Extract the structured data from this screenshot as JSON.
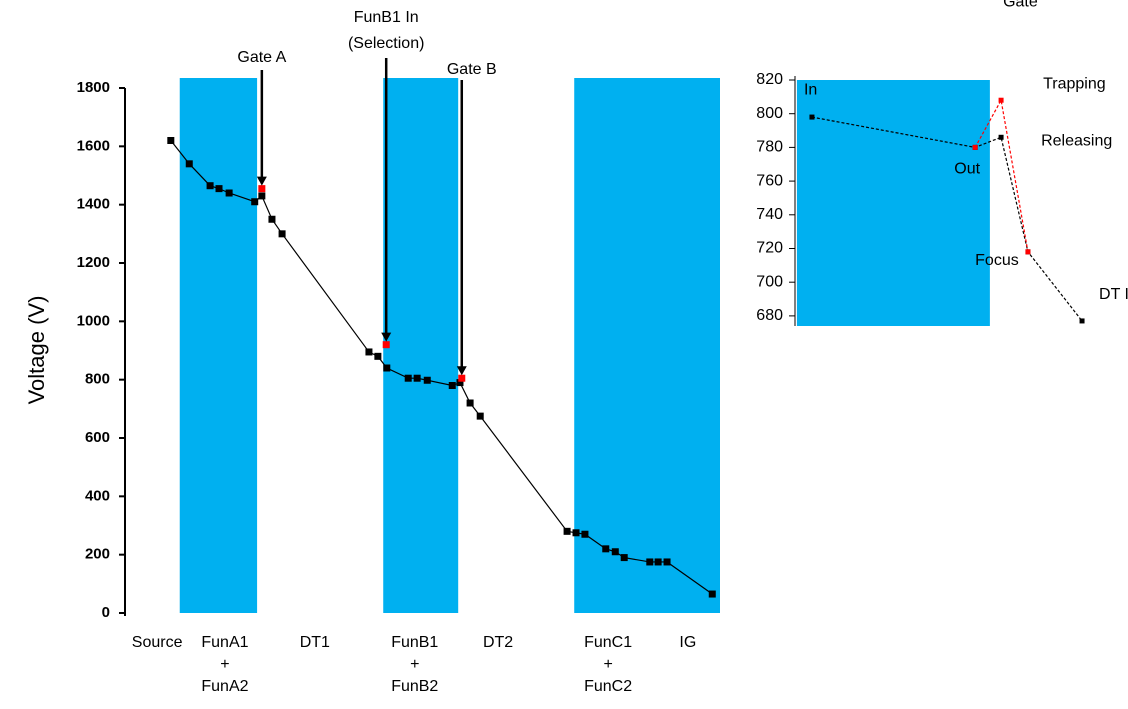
{
  "chart_data": [
    {
      "type": "line",
      "ylabel": "Voltage (V)",
      "xlim": [
        0,
        100
      ],
      "ylim": [
        0,
        1800
      ],
      "yticks": [
        0,
        200,
        400,
        600,
        800,
        1000,
        1200,
        1400,
        1600,
        1800
      ],
      "xticks": [
        {
          "value": 5.4,
          "label": "Source"
        },
        {
          "value": 16.8,
          "label": "FunA1\n+\nFunA2"
        },
        {
          "value": 31.9,
          "label": "DT1"
        },
        {
          "value": 48.7,
          "label": "FunB1\n+\nFunB2"
        },
        {
          "value": 62.7,
          "label": "DT2"
        },
        {
          "value": 81.2,
          "label": "FunC1\n+\nFunC2"
        },
        {
          "value": 94.6,
          "label": "IG"
        }
      ],
      "bands": [
        [
          9.2,
          22.2
        ],
        [
          43.4,
          56.0
        ],
        [
          75.5,
          100
        ]
      ],
      "band_color": "#00b0f0",
      "series": [
        {
          "color": "#000000",
          "line": true,
          "x": [
            7.7,
            10.8,
            14.3,
            15.8,
            17.5,
            21.8,
            23.0,
            24.7,
            26.4,
            41.0,
            42.5,
            44.0,
            47.6,
            49.1,
            50.8,
            55.0,
            56.3,
            58.0,
            59.7,
            74.3,
            75.8,
            77.3,
            80.8,
            82.4,
            83.9,
            88.2,
            89.6,
            91.1,
            98.7
          ],
          "values": [
            1620,
            1540,
            1465,
            1455,
            1440,
            1410,
            1430,
            1350,
            1300,
            895,
            880,
            840,
            805,
            805,
            798,
            780,
            790,
            720,
            675,
            280,
            275,
            270,
            220,
            210,
            190,
            175,
            175,
            175,
            65
          ]
        },
        {
          "color": "#ff0000",
          "line": false,
          "x": [
            23.0,
            43.9,
            56.6
          ],
          "values": [
            1455,
            920,
            805
          ]
        }
      ],
      "annotations": [
        {
          "text": "Gate A",
          "x": 23.0,
          "y": 1455
        },
        {
          "text": "FunB1 In\n(Selection)",
          "x": 43.9,
          "y": 920
        },
        {
          "text": "Gate B",
          "x": 56.6,
          "y": 805
        }
      ]
    },
    {
      "type": "line",
      "xlim": [
        0,
        100
      ],
      "ylim": [
        674,
        820
      ],
      "yticks": [
        680,
        700,
        720,
        740,
        760,
        780,
        800,
        820
      ],
      "bands": [
        [
          0.6,
          60.9
        ]
      ],
      "band_color": "#00b0f0",
      "series": [
        {
          "color": "#000000",
          "line": true,
          "dashed": true,
          "x": [
            5.3,
            56.3,
            64.4,
            72.8,
            89.7
          ],
          "values": [
            798,
            780,
            786,
            718,
            677
          ]
        },
        {
          "color": "#ff0000",
          "line": true,
          "dashed": true,
          "x": [
            56.3,
            64.4,
            72.8
          ],
          "values": [
            780,
            808,
            718
          ]
        }
      ],
      "annotations": [
        {
          "text": "In",
          "x": 5.3,
          "y": 798
        },
        {
          "text": "Out",
          "x": 56.3,
          "y": 780
        },
        {
          "text": "Gate",
          "x": 64.4,
          "y": 808
        },
        {
          "text": "Trapping",
          "x": 64.4,
          "y": 808
        },
        {
          "text": "Releasing",
          "x": 64.4,
          "y": 786
        },
        {
          "text": "Focus",
          "x": 72.8,
          "y": 718
        },
        {
          "text": "DT In",
          "x": 89.7,
          "y": 677
        }
      ]
    }
  ]
}
